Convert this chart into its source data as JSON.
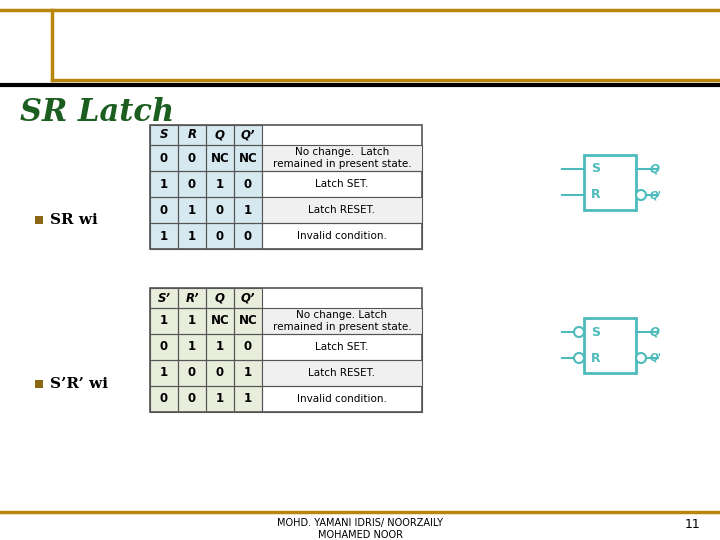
{
  "title": "SR Latch",
  "title_color": "#1B5E20",
  "background_color": "#FFFFFF",
  "border_color": "#B8860B",
  "bullet_color": "#8B6914",
  "bullet1_text": "SR wi",
  "bullet2_text": "S’R’ wi",
  "table1_headers": [
    "S",
    "R",
    "Q",
    "Q’"
  ],
  "table1_rows": [
    [
      "0",
      "0",
      "NC",
      "NC",
      "No change.  Latch\nremained in present state."
    ],
    [
      "1",
      "0",
      "1",
      "0",
      "Latch SET."
    ],
    [
      "0",
      "1",
      "0",
      "1",
      "Latch RESET."
    ],
    [
      "1",
      "1",
      "0",
      "0",
      "Invalid condition."
    ]
  ],
  "table2_headers": [
    "S’",
    "R’",
    "Q",
    "Q’"
  ],
  "table2_rows": [
    [
      "1",
      "1",
      "NC",
      "NC",
      "No change. Latch\nremained in present state."
    ],
    [
      "0",
      "1",
      "1",
      "0",
      "Latch SET."
    ],
    [
      "1",
      "0",
      "0",
      "1",
      "Latch RESET."
    ],
    [
      "0",
      "0",
      "1",
      "1",
      "Invalid condition."
    ]
  ],
  "table1_bg": "#D6E8F0",
  "table2_bg": "#E8EDDC",
  "box_color": "#4DBBBB",
  "footer_text": "MOHD. YAMANI IDRIS/ NOORZAILY\nMOHAMED NOOR",
  "page_number": "11"
}
